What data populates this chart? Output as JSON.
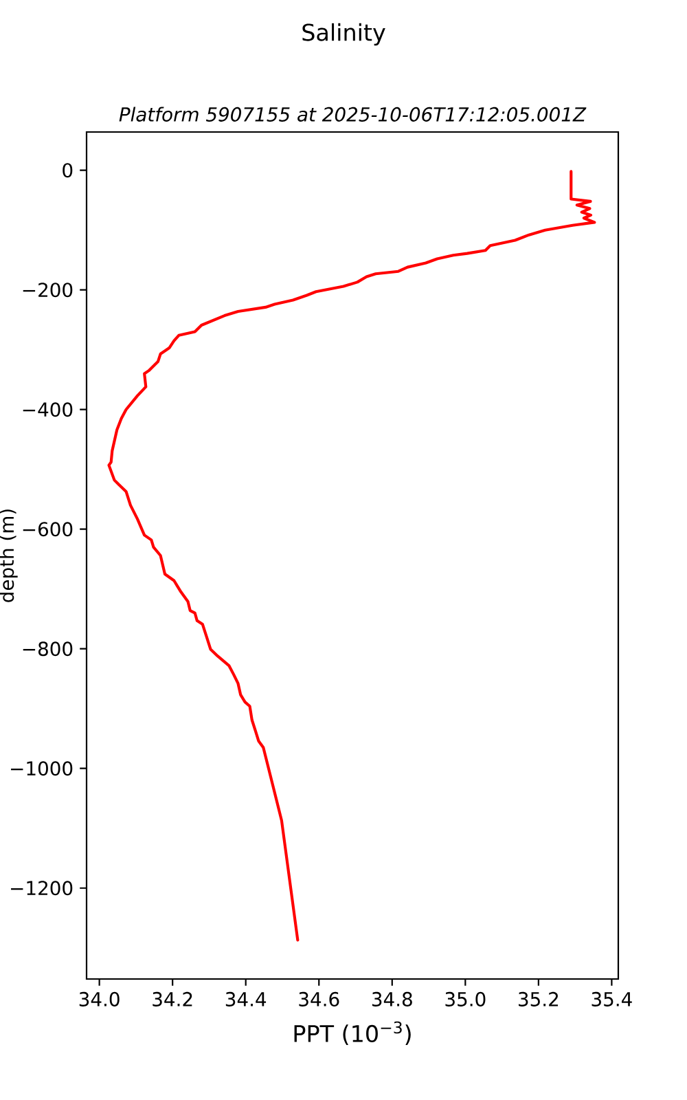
{
  "chart_data": {
    "type": "line",
    "title": "Salinity",
    "subtitle": "Platform 5907155 at 2025-10-06T17:12:05.001Z",
    "xlabel": "PPT (10$^{−3}$)",
    "ylabel": "depth (m)",
    "color": "#ff0000",
    "line_style": "solid",
    "x": [
      35.289,
      35.289,
      35.342,
      35.305,
      35.34,
      35.318,
      35.343,
      35.324,
      35.353,
      35.293,
      35.218,
      35.174,
      35.136,
      35.068,
      35.055,
      35.005,
      34.967,
      34.923,
      34.892,
      34.842,
      34.817,
      34.755,
      34.73,
      34.705,
      34.667,
      34.592,
      34.567,
      34.529,
      34.479,
      34.454,
      34.379,
      34.342,
      34.279,
      34.261,
      34.217,
      34.204,
      34.191,
      34.167,
      34.16,
      34.135,
      34.123,
      34.127,
      34.104,
      34.073,
      34.06,
      34.048,
      34.035,
      34.032,
      34.026,
      34.041,
      34.054,
      34.073,
      34.085,
      34.104,
      34.123,
      34.142,
      34.148,
      34.167,
      34.179,
      34.204,
      34.223,
      34.242,
      34.248,
      34.261,
      34.267,
      34.282,
      34.292,
      34.304,
      34.323,
      34.354,
      34.367,
      34.379,
      34.386,
      34.398,
      34.411,
      34.417,
      34.427,
      34.435,
      34.448,
      34.473,
      34.498,
      34.542
    ],
    "values": [
      -2,
      -48,
      -52,
      -58,
      -64,
      -70,
      -75,
      -80,
      -87,
      -92,
      -100,
      -108,
      -117,
      -126,
      -134,
      -139,
      -142,
      -148,
      -155,
      -162,
      -169,
      -173,
      -178,
      -187,
      -194,
      -203,
      -209,
      -217,
      -224,
      -229,
      -236,
      -243,
      -259,
      -270,
      -276,
      -285,
      -297,
      -307,
      -320,
      -335,
      -340,
      -362,
      -377,
      -400,
      -415,
      -434,
      -469,
      -488,
      -493,
      -518,
      -526,
      -537,
      -560,
      -583,
      -610,
      -618,
      -630,
      -644,
      -675,
      -686,
      -705,
      -721,
      -736,
      -740,
      -753,
      -759,
      -778,
      -801,
      -812,
      -828,
      -843,
      -858,
      -877,
      -889,
      -896,
      -919,
      -938,
      -954,
      -965,
      -1026,
      -1087,
      -1287
    ],
    "xlim": [
      33.965,
      35.418
    ],
    "ylim": [
      -1352,
      64
    ],
    "xticks": [
      {
        "value": 34.0,
        "label": "34.0"
      },
      34.2,
      34.4,
      34.6,
      34.8,
      {
        "value": 35.0,
        "label": "35.0"
      },
      35.2,
      35.4
    ],
    "yticks": [
      0,
      {
        "value": -200,
        "label": "−200"
      },
      {
        "value": -400,
        "label": "−400"
      },
      {
        "value": -600,
        "label": "−600"
      },
      {
        "value": -800,
        "label": "−800"
      },
      {
        "value": -1000,
        "label": "−1000"
      },
      {
        "value": -1200,
        "label": "−1200"
      }
    ]
  }
}
